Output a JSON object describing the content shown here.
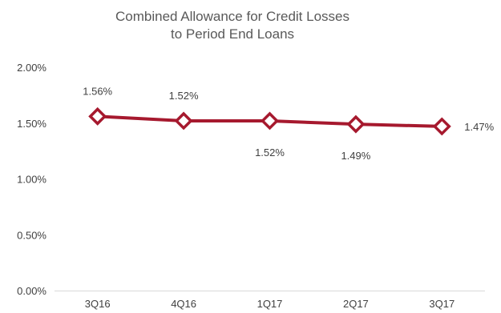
{
  "chart_data": {
    "type": "line",
    "title": [
      "Combined Allowance for Credit Losses",
      "to Period End Loans"
    ],
    "categories": [
      "3Q16",
      "4Q16",
      "1Q17",
      "2Q17",
      "3Q17"
    ],
    "series": [
      {
        "values": [
          1.56,
          1.52,
          1.52,
          1.49,
          1.47
        ],
        "color": "#a6192e"
      }
    ],
    "data_labels": [
      "1.56%",
      "1.52%",
      "1.52%",
      "1.49%",
      "1.47%"
    ],
    "data_label_positions": [
      "above",
      "above",
      "below",
      "below",
      "right"
    ],
    "y_ticks": [
      0,
      0.5,
      1.0,
      1.5,
      2.0
    ],
    "y_tick_labels": [
      "0.00%",
      "0.50%",
      "1.00%",
      "1.50%",
      "2.00%"
    ],
    "ylim": [
      0,
      2.0
    ],
    "grid": false,
    "legend": "none",
    "marker": "diamond-hollow",
    "axis_color": "#d9d9d9"
  }
}
